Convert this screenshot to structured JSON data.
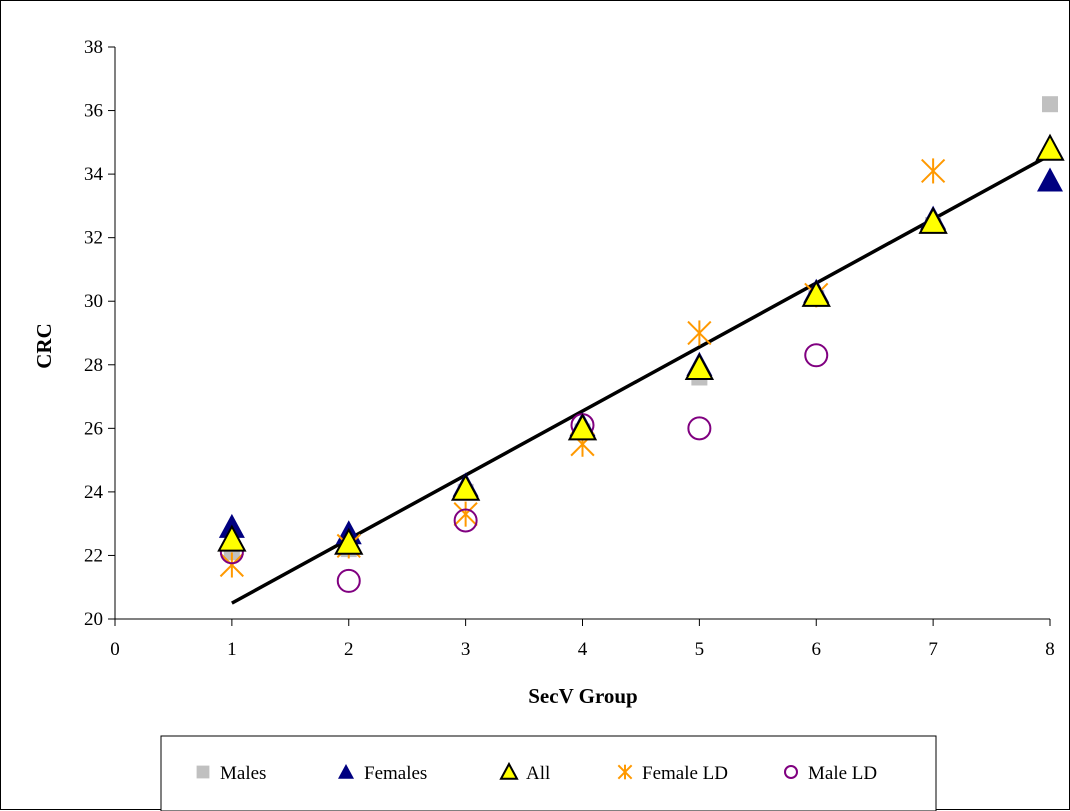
{
  "chart_data": {
    "type": "scatter",
    "xlabel": "SecV Group",
    "ylabel": "CRC",
    "xlim": [
      0,
      8
    ],
    "ylim": [
      20,
      38
    ],
    "x_ticks": [
      0,
      1,
      2,
      3,
      4,
      5,
      6,
      7,
      8
    ],
    "y_ticks": [
      20,
      22,
      24,
      26,
      28,
      30,
      32,
      34,
      36,
      38
    ],
    "grid": false,
    "legend": "bottom",
    "series": [
      {
        "name": "Males",
        "marker": "square",
        "color": "#c0c0c0",
        "x": [
          1,
          2,
          3,
          4,
          5,
          6,
          7,
          8
        ],
        "y": [
          22.1,
          22.2,
          24.0,
          25.9,
          27.6,
          30.1,
          32.4,
          36.2
        ]
      },
      {
        "name": "Females",
        "marker": "triangle",
        "color": "#000080",
        "x": [
          1,
          2,
          3,
          4,
          5,
          6,
          7,
          8
        ],
        "y": [
          22.9,
          22.7,
          24.2,
          26.1,
          28.0,
          30.3,
          32.6,
          33.8
        ]
      },
      {
        "name": "All",
        "marker": "triangle-outline",
        "color": "#ffff00",
        "x": [
          1,
          2,
          3,
          4,
          5,
          6,
          7,
          8
        ],
        "y": [
          22.5,
          22.4,
          24.1,
          26.0,
          27.9,
          30.2,
          32.5,
          34.8
        ]
      },
      {
        "name": "Female LD",
        "marker": "asterisk",
        "color": "#ff9900",
        "x": [
          1,
          2,
          3,
          4,
          5,
          6,
          7,
          8
        ],
        "y": [
          21.7,
          22.3,
          23.3,
          25.5,
          29.0,
          30.2,
          34.1,
          null
        ]
      },
      {
        "name": "Male LD",
        "marker": "circle",
        "color": "#800080",
        "x": [
          1,
          2,
          3,
          4,
          5,
          6,
          7,
          8
        ],
        "y": [
          22.1,
          21.2,
          23.1,
          26.1,
          26.0,
          28.3,
          null,
          null
        ]
      }
    ],
    "trendline": {
      "from": [
        1,
        20.5
      ],
      "to": [
        8,
        34.6
      ],
      "color": "#000000"
    }
  }
}
